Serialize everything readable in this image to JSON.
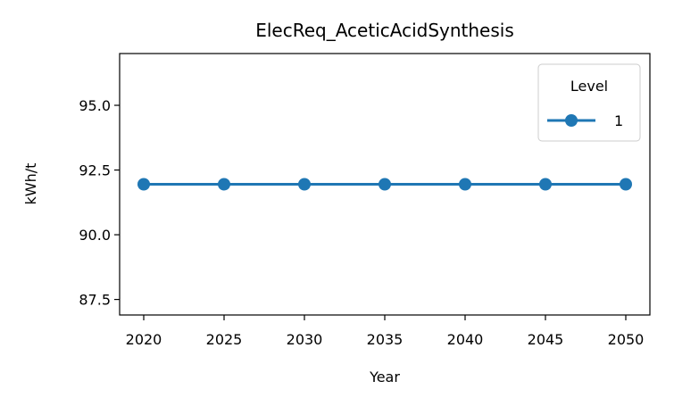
{
  "chart_data": {
    "type": "line",
    "title": "ElecReq_AceticAcidSynthesis",
    "xlabel": "Year",
    "ylabel": "kWh/t",
    "x": [
      2020,
      2025,
      2030,
      2035,
      2040,
      2045,
      2050
    ],
    "x_ticks": [
      "2020",
      "2025",
      "2030",
      "2035",
      "2040",
      "2045",
      "2050"
    ],
    "y_ticks": [
      "87.5",
      "90.0",
      "92.5",
      "95.0"
    ],
    "y_tick_values": [
      87.5,
      90.0,
      92.5,
      95.0
    ],
    "xlim": [
      2018.5,
      2051.5
    ],
    "ylim": [
      86.9,
      97.0
    ],
    "grid": false,
    "legend": {
      "title": "Level",
      "placement": "top-right"
    },
    "series": [
      {
        "name": "1",
        "color": "#1f77b4",
        "marker": "circle",
        "values": [
          91.95,
          91.95,
          91.95,
          91.95,
          91.95,
          91.95,
          91.95
        ]
      }
    ]
  }
}
